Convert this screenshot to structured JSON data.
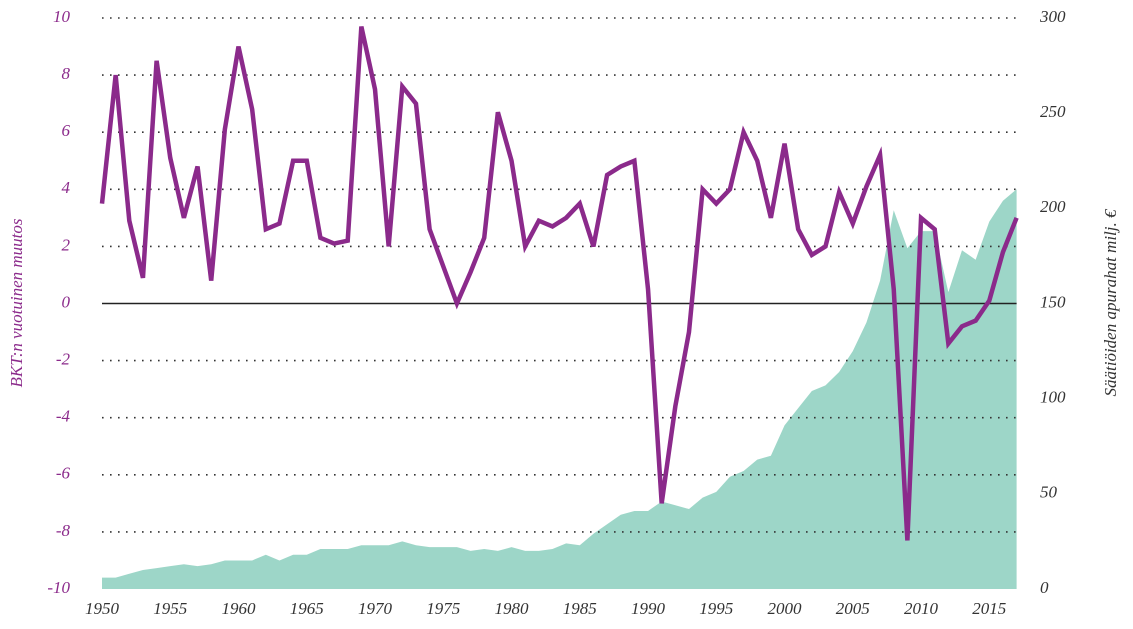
{
  "chart_data": {
    "type": "line",
    "y_label": "BKT:n vuotuinen muutos",
    "y2_label": "Säätiöiden apurahat milj. €",
    "x": [
      1950,
      1951,
      1952,
      1953,
      1954,
      1955,
      1956,
      1957,
      1958,
      1959,
      1960,
      1961,
      1962,
      1963,
      1964,
      1965,
      1966,
      1967,
      1968,
      1969,
      1970,
      1971,
      1972,
      1973,
      1974,
      1975,
      1976,
      1977,
      1978,
      1979,
      1980,
      1981,
      1982,
      1983,
      1984,
      1985,
      1986,
      1987,
      1988,
      1989,
      1990,
      1991,
      1992,
      1993,
      1994,
      1995,
      1996,
      1997,
      1998,
      1999,
      2000,
      2001,
      2002,
      2003,
      2004,
      2005,
      2006,
      2007,
      2008,
      2009,
      2010,
      2011,
      2012,
      2013,
      2014,
      2015,
      2016,
      2017
    ],
    "series": [
      {
        "type": "area",
        "axis": "y2",
        "color": "#9dd6c8",
        "values": [
          6,
          6,
          8,
          10,
          11,
          12,
          13,
          12,
          13,
          15,
          15,
          15,
          18,
          15,
          18,
          18,
          21,
          21,
          21,
          23,
          23,
          23,
          25,
          23,
          22,
          22,
          22,
          20,
          21,
          20,
          22,
          20,
          20,
          21,
          24,
          23,
          29,
          34,
          39,
          41,
          41,
          46,
          44,
          42,
          48,
          51,
          59,
          62,
          68,
          70,
          86,
          95,
          104,
          107,
          114,
          125,
          140,
          162,
          199,
          179,
          188,
          188,
          156,
          178,
          173,
          193,
          204,
          210
        ]
      },
      {
        "type": "line",
        "axis": "y",
        "color": "#8b2a8b",
        "values": [
          3.5,
          8.0,
          2.9,
          0.9,
          8.5,
          5.1,
          3.0,
          4.8,
          0.8,
          6.1,
          9.0,
          6.8,
          2.6,
          2.8,
          5.0,
          5.0,
          2.3,
          2.1,
          2.2,
          9.7,
          7.5,
          2.0,
          7.6,
          7.0,
          2.6,
          1.3,
          0.0,
          1.1,
          2.3,
          6.7,
          5.0,
          2.0,
          2.9,
          2.7,
          3.0,
          3.5,
          2.0,
          4.5,
          4.8,
          5.0,
          0.5,
          -7.0,
          -3.6,
          -1.0,
          4.0,
          3.5,
          4.0,
          6.0,
          5.0,
          3.0,
          5.6,
          2.6,
          1.7,
          2.0,
          3.9,
          2.8,
          4.1,
          5.2,
          0.5,
          -8.3,
          3.0,
          2.6,
          -1.4,
          -0.8,
          -0.6,
          0.1,
          1.8,
          3.0
        ]
      }
    ],
    "xlim": [
      1950,
      2017
    ],
    "xticks": [
      1950,
      1955,
      1960,
      1965,
      1970,
      1975,
      1980,
      1985,
      1990,
      1995,
      2000,
      2005,
      2010,
      2015
    ],
    "ylim": [
      -10,
      10
    ],
    "yticks": [
      -10,
      -8,
      -6,
      -4,
      -2,
      0,
      2,
      4,
      6,
      8,
      10
    ],
    "y2lim": [
      0,
      300
    ],
    "y2ticks": [
      0,
      50,
      100,
      150,
      200,
      250,
      300
    ],
    "grid": true
  }
}
